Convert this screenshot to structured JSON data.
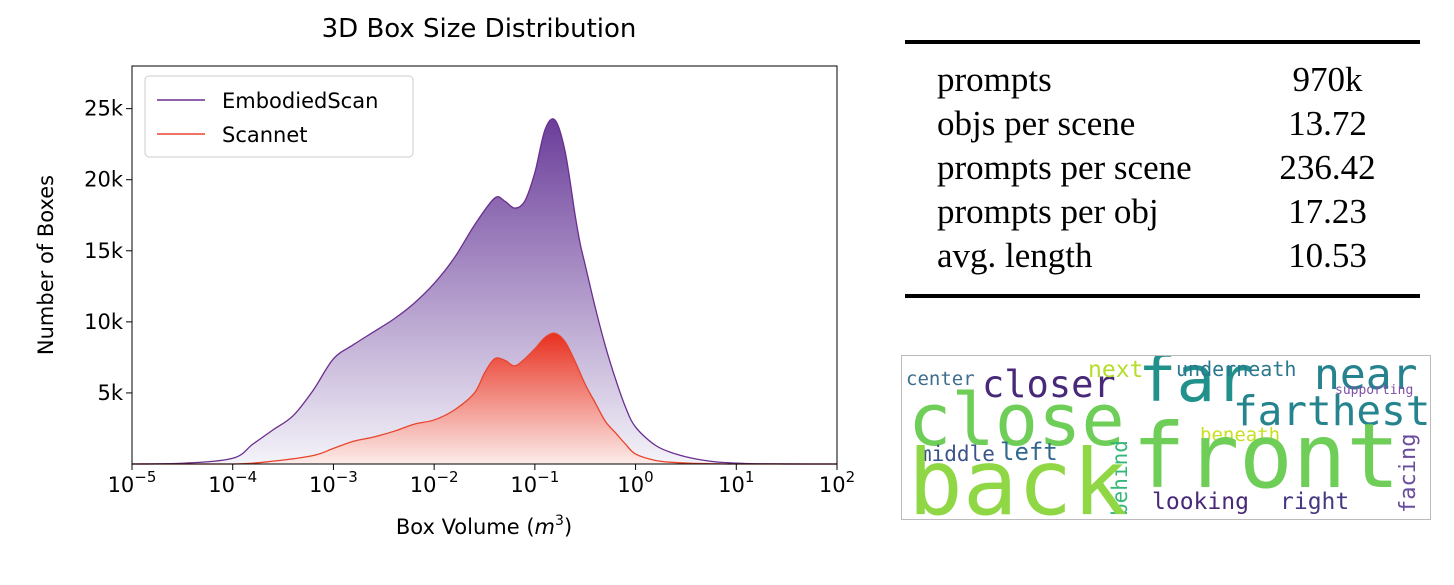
{
  "chart_data": {
    "type": "area",
    "title": "3D Box Size Distribution",
    "xlabel": "Box Volume (m^3)",
    "ylabel": "Number of Boxes",
    "x_scale": "log",
    "xlim_log10": [
      -5,
      2
    ],
    "ylim": [
      0,
      28000
    ],
    "x_ticks": [
      {
        "pow": -5,
        "base": "10",
        "exp": "−5"
      },
      {
        "pow": -4,
        "base": "10",
        "exp": "−4"
      },
      {
        "pow": -3,
        "base": "10",
        "exp": "−3"
      },
      {
        "pow": -2,
        "base": "10",
        "exp": "−2"
      },
      {
        "pow": -1,
        "base": "10",
        "exp": "−1"
      },
      {
        "pow": 0,
        "base": "10",
        "exp": "0"
      },
      {
        "pow": 1,
        "base": "10",
        "exp": "1"
      },
      {
        "pow": 2,
        "base": "10",
        "exp": "2"
      }
    ],
    "y_ticks": [
      {
        "value": 5000,
        "label": "5k"
      },
      {
        "value": 10000,
        "label": "10k"
      },
      {
        "value": 15000,
        "label": "15k"
      },
      {
        "value": 20000,
        "label": "20k"
      },
      {
        "value": 25000,
        "label": "25k"
      }
    ],
    "legend_position": "top-left",
    "series": [
      {
        "name": "EmbodiedScan",
        "color": "#6a2f8f",
        "fill_top": "#6b3d9a",
        "fill_bottom": "#f4f3f9",
        "log10_x": [
          -5.0,
          -4.5,
          -4.0,
          -3.8,
          -3.6,
          -3.4,
          -3.2,
          -3.0,
          -2.8,
          -2.6,
          -2.4,
          -2.2,
          -2.0,
          -1.8,
          -1.6,
          -1.4,
          -1.3,
          -1.2,
          -1.1,
          -1.0,
          -0.9,
          -0.8,
          -0.7,
          -0.6,
          -0.55,
          -0.5,
          -0.4,
          -0.3,
          -0.2,
          -0.1,
          0.0,
          0.2,
          0.4,
          0.6,
          0.8,
          1.0,
          1.2,
          1.5,
          2.0
        ],
        "y": [
          0,
          50,
          400,
          1400,
          2400,
          3400,
          5200,
          7400,
          8400,
          9300,
          10200,
          11300,
          12700,
          14500,
          16800,
          18700,
          18500,
          18000,
          18500,
          20500,
          23500,
          24200,
          22000,
          17500,
          15500,
          14000,
          11000,
          8300,
          6000,
          4000,
          2600,
          1300,
          700,
          350,
          150,
          60,
          20,
          5,
          0
        ]
      },
      {
        "name": "Scannet",
        "color": "#e8452c",
        "fill_top": "#e8301f",
        "fill_bottom": "#fcecea",
        "log10_x": [
          -5.0,
          -4.0,
          -3.6,
          -3.2,
          -3.0,
          -2.8,
          -2.6,
          -2.4,
          -2.2,
          -2.0,
          -1.8,
          -1.6,
          -1.5,
          -1.4,
          -1.3,
          -1.2,
          -1.1,
          -1.0,
          -0.9,
          -0.8,
          -0.7,
          -0.6,
          -0.5,
          -0.4,
          -0.3,
          -0.2,
          -0.1,
          0.0,
          0.2,
          0.4,
          0.6,
          0.8,
          1.0,
          1.5,
          2.0
        ],
        "y": [
          0,
          0,
          200,
          600,
          1100,
          1600,
          1900,
          2300,
          2800,
          3100,
          3800,
          5000,
          6400,
          7400,
          7300,
          6900,
          7400,
          8100,
          8900,
          9200,
          8600,
          7200,
          5600,
          4300,
          3000,
          2200,
          1400,
          700,
          250,
          100,
          40,
          15,
          0,
          0,
          0
        ]
      }
    ]
  },
  "stats_table": {
    "rows": [
      {
        "label": "prompts",
        "value": "970k"
      },
      {
        "label": "objs per scene",
        "value": "13.72"
      },
      {
        "label": "prompts per scene",
        "value": "236.42"
      },
      {
        "label": "prompts per obj",
        "value": "17.23"
      },
      {
        "label": "avg. length",
        "value": "10.53"
      }
    ]
  },
  "word_cloud": {
    "words": [
      {
        "text": "center",
        "color": "#3e6e8e"
      },
      {
        "text": "closer",
        "color": "#482878"
      },
      {
        "text": "next",
        "color": "#b5de2b"
      },
      {
        "text": "far",
        "color": "#21918c"
      },
      {
        "text": "underneath",
        "color": "#2a788e"
      },
      {
        "text": "near",
        "color": "#26828e"
      },
      {
        "text": "supporting",
        "color": "#7e4fa8"
      },
      {
        "text": "close",
        "color": "#6ece58"
      },
      {
        "text": "farthest",
        "color": "#25848e"
      },
      {
        "text": "middle",
        "color": "#3b528b"
      },
      {
        "text": "left",
        "color": "#31688e"
      },
      {
        "text": "behind",
        "color": "#35b779"
      },
      {
        "text": "beneath",
        "color": "#c8e020"
      },
      {
        "text": "back",
        "color": "#8fd744"
      },
      {
        "text": "front",
        "color": "#6ece58"
      },
      {
        "text": "facing",
        "color": "#6a4c9c"
      },
      {
        "text": "looking",
        "color": "#482878"
      },
      {
        "text": "right",
        "color": "#443983"
      }
    ]
  }
}
